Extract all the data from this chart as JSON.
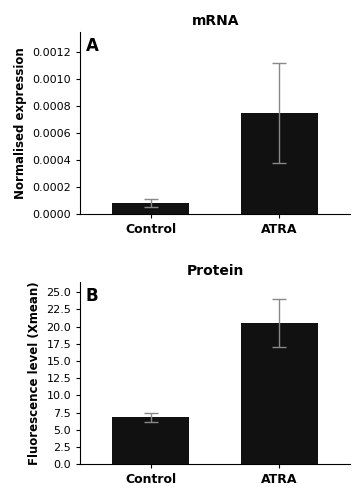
{
  "panel_A": {
    "title": "mRNA",
    "label": "A",
    "categories": [
      "Control",
      "ATRA"
    ],
    "values": [
      8e-05,
      0.00075
    ],
    "errors": [
      3e-05,
      0.00037
    ],
    "ylabel": "Normalised expression",
    "ylim": [
      0,
      0.00135
    ],
    "yticks": [
      0.0,
      0.0002,
      0.0004,
      0.0006,
      0.0008,
      0.001,
      0.0012
    ],
    "bar_color": "#111111",
    "error_color": "#888888"
  },
  "panel_B": {
    "title": "Protein",
    "label": "B",
    "categories": [
      "Control",
      "ATRA"
    ],
    "values": [
      6.8,
      20.5
    ],
    "errors": [
      0.7,
      3.5
    ],
    "ylabel": "Fluorescence level (Xmean)",
    "ylim": [
      0,
      26.5
    ],
    "yticks": [
      0.0,
      2.5,
      5.0,
      7.5,
      10.0,
      12.5,
      15.0,
      17.5,
      20.0,
      22.5,
      25.0
    ],
    "bar_color": "#111111",
    "error_color": "#888888"
  },
  "background_color": "#ffffff",
  "bar_width": 0.6,
  "tick_fontsize": 8,
  "label_fontsize": 8.5,
  "title_fontsize": 10,
  "panel_label_fontsize": 12,
  "xlabel_fontsize": 9
}
